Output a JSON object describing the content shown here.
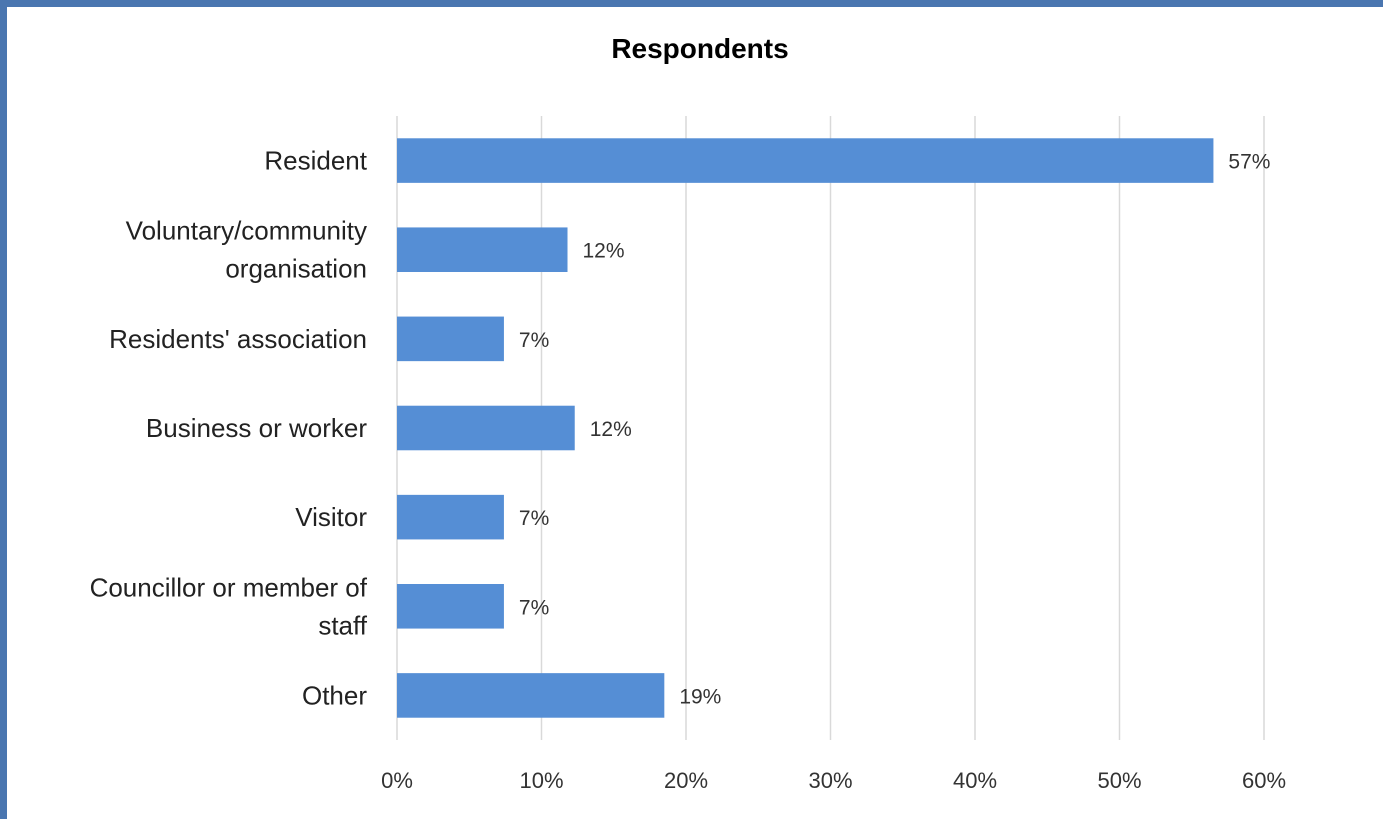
{
  "chart_data": {
    "type": "bar",
    "orientation": "horizontal",
    "title": "Respondents",
    "categories": [
      [
        "Resident"
      ],
      [
        "Voluntary/community",
        "organisation"
      ],
      [
        "Residents' association"
      ],
      [
        "Business or worker"
      ],
      [
        "Visitor"
      ],
      [
        "Councillor or member of",
        "staff"
      ],
      [
        "Other"
      ]
    ],
    "values": [
      56.5,
      11.8,
      7.4,
      12.3,
      7.4,
      7.4,
      18.5
    ],
    "data_labels": [
      "57%",
      "12%",
      "7%",
      "12%",
      "7%",
      "7%",
      "19%"
    ],
    "xlim": [
      0,
      60
    ],
    "x_ticks": [
      "0%",
      "10%",
      "20%",
      "30%",
      "40%",
      "50%",
      "60%"
    ],
    "grid": "vertical",
    "legend": "none",
    "colors": {
      "bar": "#558ed5",
      "grid": "#d9d9d9",
      "frame": "#4a76b0"
    }
  }
}
